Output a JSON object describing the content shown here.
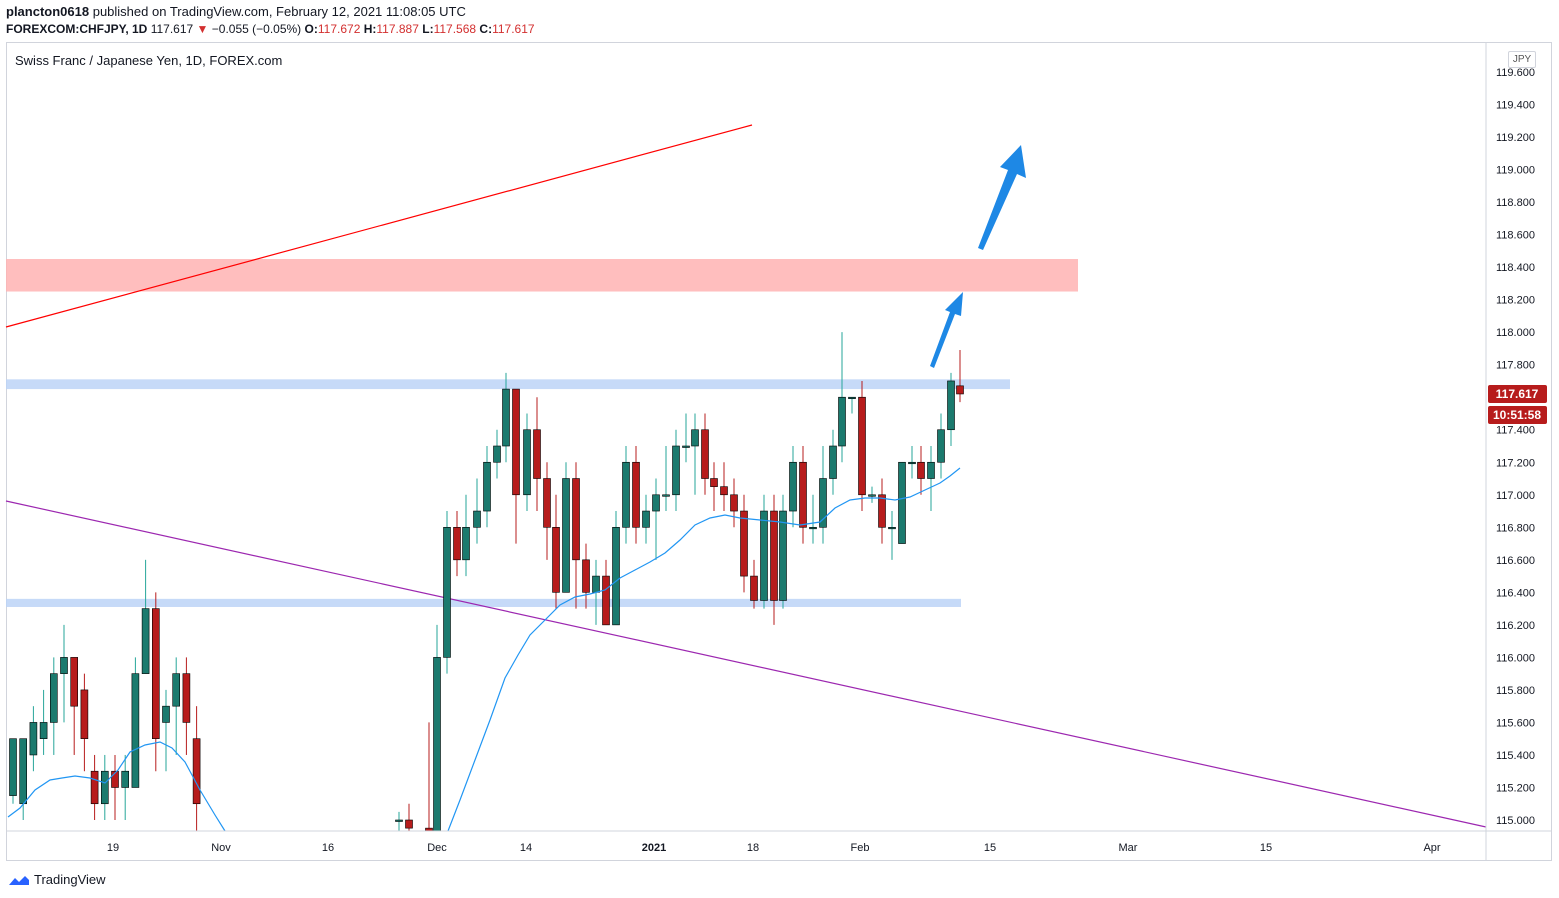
{
  "header": {
    "publisher": "plancton0618",
    "published_text": "published on TradingView.com, February 12, 2021 11:08:05 UTC",
    "symbol": "FOREXCOM:CHFJPY",
    "interval": ", 1D",
    "last": "117.617",
    "change": "−0.055 (−0.05%)",
    "o_label": "O:",
    "o_value": "117.672",
    "h_label": "H:",
    "h_value": "117.887",
    "l_label": "L:",
    "l_value": "117.568",
    "c_label": "C:",
    "c_value": "117.617"
  },
  "legend": "Swiss Franc / Japanese Yen, 1D, FOREX.com",
  "currency": "JPY",
  "footer": {
    "brand": "TradingView"
  },
  "colors": {
    "up": "#26a69a",
    "up_body": "#1b7a6e",
    "down": "#b71c1c",
    "ma": "#2196f3",
    "resistance_line": "#ff0000",
    "support_line": "#9c27b0",
    "zone_red": "#ffb3b3",
    "zone_blue": "#bcd4f7",
    "arrow": "#1e88e5"
  },
  "chart_data": {
    "type": "candlestick",
    "yticks": [
      "119.600",
      "119.400",
      "119.200",
      "119.000",
      "118.800",
      "118.600",
      "118.400",
      "118.200",
      "118.000",
      "117.800",
      "117.400",
      "117.200",
      "117.000",
      "116.800",
      "116.600",
      "116.400",
      "116.200",
      "116.000",
      "115.800",
      "115.600",
      "115.400",
      "115.200",
      "115.000"
    ],
    "ylim": [
      114.95,
      119.65
    ],
    "xticks": [
      {
        "label": "19",
        "bold": false
      },
      {
        "label": "Nov",
        "bold": false
      },
      {
        "label": "16",
        "bold": false
      },
      {
        "label": "Dec",
        "bold": false
      },
      {
        "label": "14",
        "bold": false
      },
      {
        "label": "2021",
        "bold": true
      },
      {
        "label": "18",
        "bold": false
      },
      {
        "label": "Feb",
        "bold": false
      },
      {
        "label": "15",
        "bold": false
      },
      {
        "label": "Mar",
        "bold": false
      },
      {
        "label": "15",
        "bold": false
      },
      {
        "label": "Apr",
        "bold": false
      }
    ],
    "price_label": "117.617",
    "countdown_label": "10:51:58",
    "zones": [
      {
        "name": "resistance-zone",
        "low": 118.25,
        "high": 118.45
      },
      {
        "name": "upper-blue-zone",
        "low": 117.65,
        "high": 117.71
      },
      {
        "name": "lower-blue-zone",
        "low": 116.31,
        "high": 116.36
      }
    ],
    "candles": [
      [
        115.15,
        115.5,
        115.4,
        115.1
      ],
      [
        115.1,
        115.5,
        115.5,
        115.0
      ],
      [
        115.4,
        115.6,
        115.7,
        115.3
      ],
      [
        115.5,
        115.6,
        115.8,
        115.4
      ],
      [
        115.6,
        115.9,
        116.0,
        115.4
      ],
      [
        115.9,
        116.0,
        116.2,
        115.6
      ],
      [
        116.0,
        115.7,
        116.0,
        115.4
      ],
      [
        115.8,
        115.5,
        115.9,
        115.3
      ],
      [
        115.3,
        115.1,
        115.4,
        115.0
      ],
      [
        115.1,
        115.3,
        115.4,
        115.0
      ],
      [
        115.3,
        115.2,
        115.4,
        115.0
      ],
      [
        115.2,
        115.3,
        115.4,
        115.0
      ],
      [
        115.2,
        115.9,
        116.0,
        115.2
      ],
      [
        115.9,
        116.3,
        116.6,
        115.9
      ],
      [
        116.3,
        115.5,
        116.4,
        115.3
      ],
      [
        115.6,
        115.7,
        115.8,
        115.3
      ],
      [
        115.7,
        115.9,
        116.0,
        115.4
      ],
      [
        115.9,
        115.6,
        116.0,
        115.4
      ],
      [
        115.5,
        115.1,
        115.7,
        114.9
      ]
    ]
  }
}
